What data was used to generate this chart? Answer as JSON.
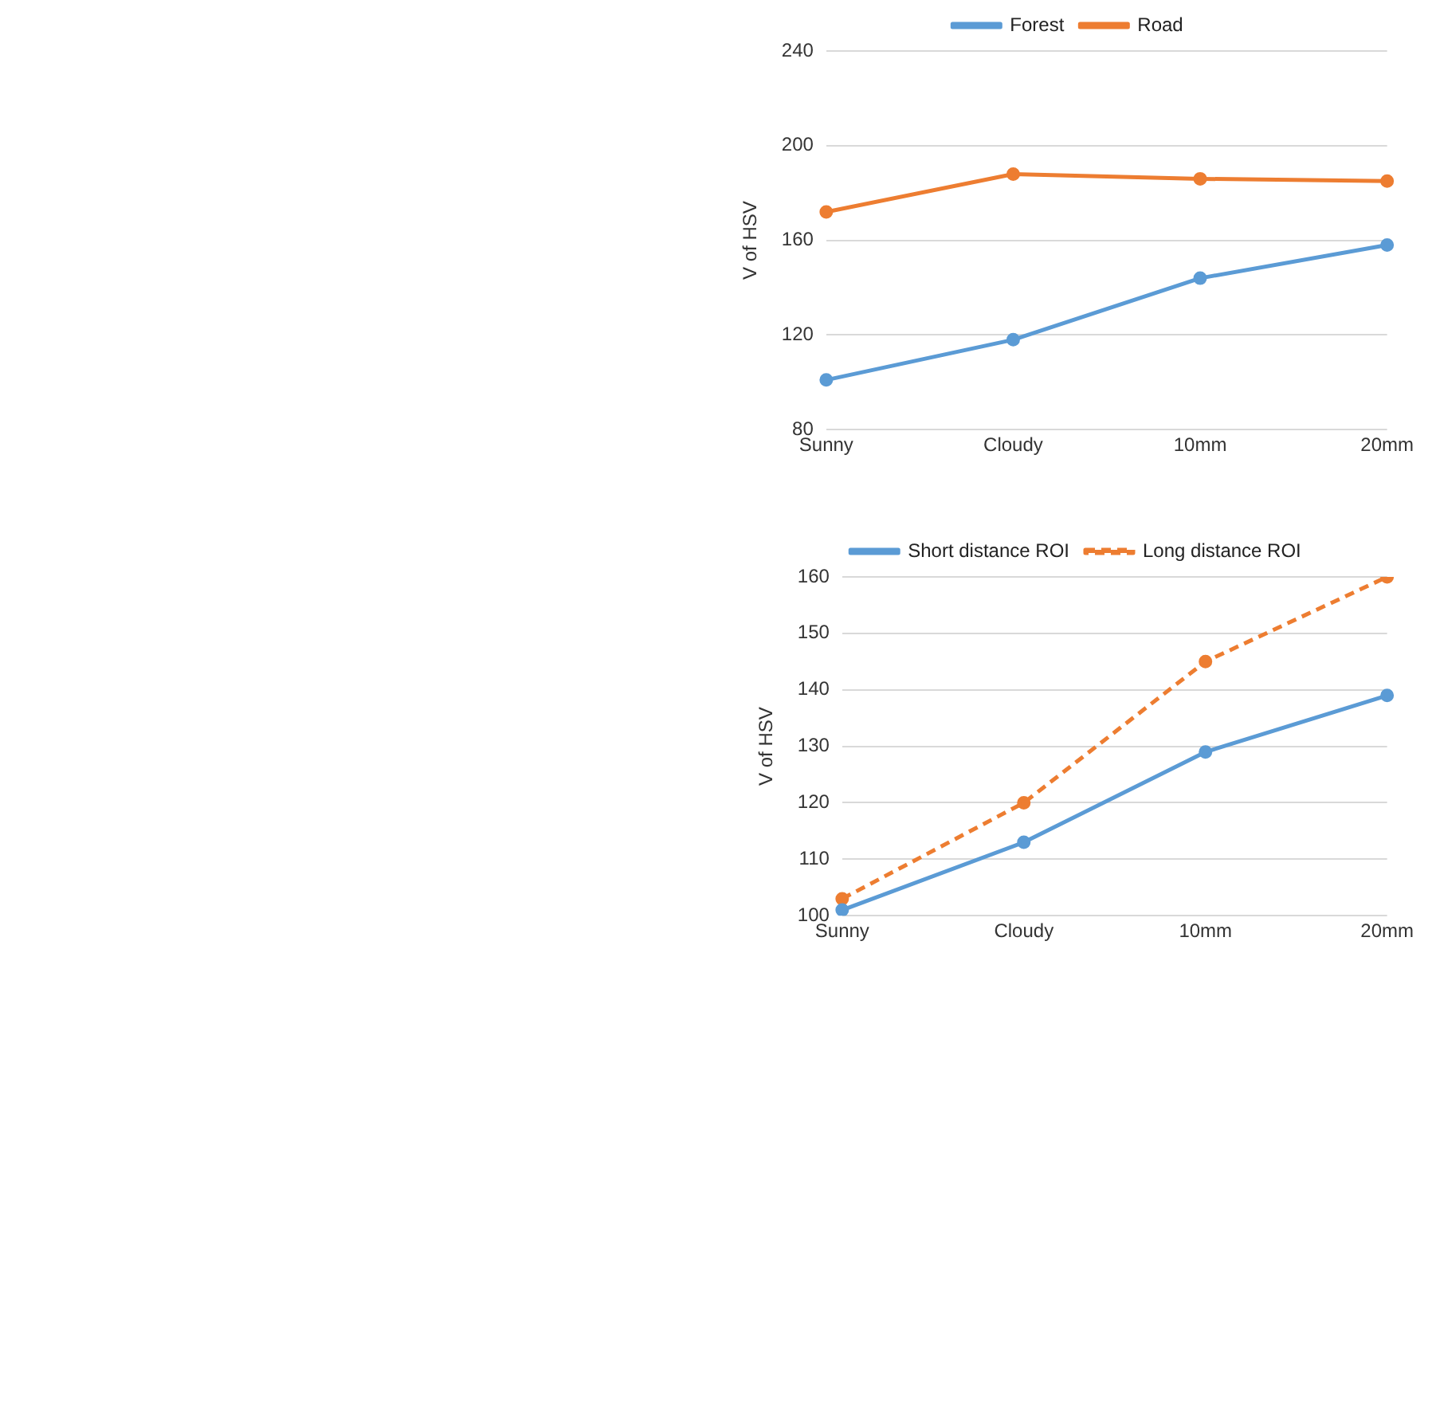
{
  "chart_data": [
    {
      "type": "line",
      "ylabel": "V of HSV",
      "categories": [
        "Sunny",
        "Cloudy",
        "10mm",
        "20mm"
      ],
      "series": [
        {
          "name": "Forest",
          "color": "#5b9bd5",
          "values": [
            101,
            118,
            144,
            158
          ]
        },
        {
          "name": "Road",
          "color": "#ed7d31",
          "values": [
            172,
            188,
            186,
            185
          ]
        }
      ],
      "ylim": [
        80,
        240
      ],
      "yticks": [
        80,
        120,
        160,
        200,
        240
      ],
      "grid": "y",
      "legend": "top",
      "marker": "circle",
      "line_style": "solid"
    },
    {
      "type": "line",
      "ylabel": "V of HSV",
      "categories": [
        "Sunny",
        "Cloudy",
        "10mm",
        "20mm"
      ],
      "series": [
        {
          "name": "Short distance ROI",
          "color": "#5b9bd5",
          "values": [
            101,
            113,
            129,
            139
          ],
          "line_style": "solid"
        },
        {
          "name": "Long distance ROI",
          "color": "#ed7d31",
          "values": [
            103,
            120,
            145,
            160
          ],
          "line_style": "dashed"
        }
      ],
      "ylim": [
        100,
        160
      ],
      "yticks": [
        100,
        110,
        120,
        130,
        140,
        150,
        160
      ],
      "grid": "y",
      "legend": "top",
      "marker": "circle"
    }
  ]
}
